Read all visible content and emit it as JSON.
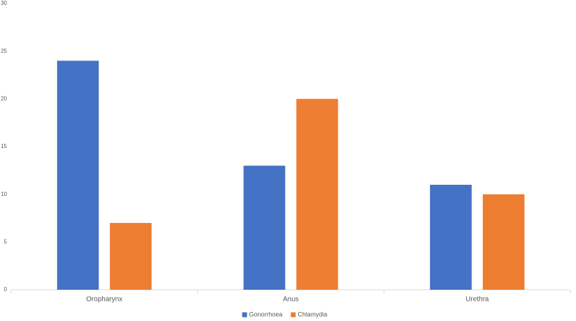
{
  "chart_data": {
    "type": "bar",
    "categories": [
      "Oropharynx",
      "Anus",
      "Urethra"
    ],
    "series": [
      {
        "name": "Gonorrhoea",
        "color": "#4472c4",
        "values": [
          24,
          13,
          11
        ]
      },
      {
        "name": "Chlamydia",
        "color": "#ed7d31",
        "values": [
          7,
          20,
          10
        ]
      }
    ],
    "ylim": [
      0,
      30
    ],
    "yticks": [
      0,
      5,
      10,
      15,
      20,
      25,
      30
    ],
    "grid": false,
    "legend": "bottom"
  }
}
